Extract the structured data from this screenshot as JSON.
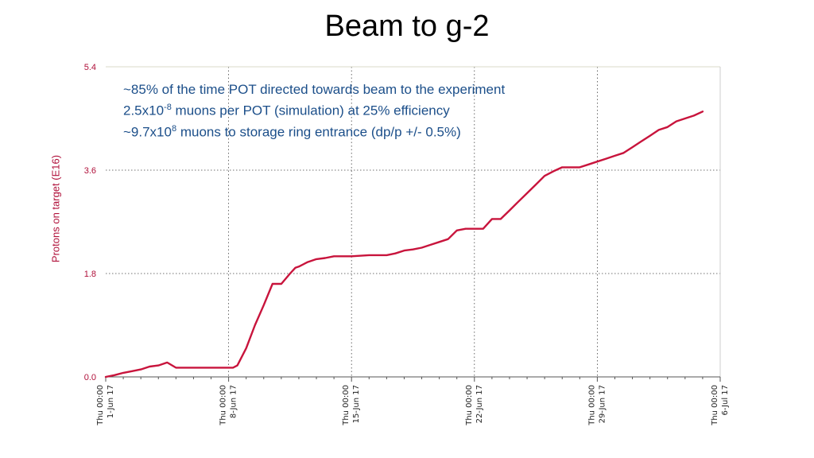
{
  "slide": {
    "title": "Beam to g-2"
  },
  "annotation": {
    "line1": "~85% of the time POT directed towards beam to the experiment",
    "line2_pre": "2.5x10",
    "line2_sup": "-8",
    "line2_post": " muons per POT (simulation) at 25% efficiency",
    "line3_pre": "~9.7x10",
    "line3_sup": "8",
    "line3_post": " muons to storage ring entrance (dp/p +/- 0.5%)"
  },
  "chart_data": {
    "type": "line",
    "ylabel": "Protons on target (E16)",
    "ylim": [
      0,
      5.4
    ],
    "yticks": [
      "0.0",
      "1.8",
      "3.6",
      "5.4"
    ],
    "xlim": [
      0,
      35
    ],
    "xticks": [
      {
        "x": 0,
        "line1": "Thu 00:00",
        "line2": "1-Jun 17"
      },
      {
        "x": 7,
        "line1": "Thu 00:00",
        "line2": "8-Jun 17"
      },
      {
        "x": 14,
        "line1": "Thu 00:00",
        "line2": "15-Jun 17"
      },
      {
        "x": 21,
        "line1": "Thu 00:00",
        "line2": "22-Jun 17"
      },
      {
        "x": 28,
        "line1": "Thu 00:00",
        "line2": "29-Jun 17"
      },
      {
        "x": 35,
        "line1": "Thu 00:00",
        "line2": "6-Jul 17"
      }
    ],
    "grid": true,
    "line_color": "#c8143c",
    "series": [
      {
        "x": [
          0.0,
          0.5,
          1.0,
          1.5,
          2.0,
          2.5,
          3.0,
          3.5,
          4.0,
          4.5,
          5.0,
          6.0,
          7.0,
          7.25,
          7.5,
          8.0,
          8.5,
          9.0,
          9.5,
          10.0,
          10.5,
          10.8,
          11.0,
          11.5,
          12.0,
          12.5,
          13.0,
          14.0,
          15.0,
          16.0,
          16.5,
          17.0,
          17.5,
          18.0,
          18.5,
          19.0,
          19.5,
          20.0,
          20.5,
          21.0,
          21.5,
          22.0,
          22.5,
          23.0,
          23.5,
          24.0,
          24.5,
          25.0,
          25.5,
          26.0,
          26.5,
          27.0,
          27.5,
          28.0,
          28.5,
          29.0,
          29.5,
          30.0,
          30.5,
          31.0,
          31.5,
          32.0,
          32.5,
          33.0,
          33.5,
          34.0
        ],
        "y": [
          0.0,
          0.03,
          0.07,
          0.1,
          0.13,
          0.18,
          0.2,
          0.25,
          0.16,
          0.16,
          0.16,
          0.16,
          0.16,
          0.16,
          0.2,
          0.5,
          0.9,
          1.25,
          1.62,
          1.62,
          1.8,
          1.9,
          1.92,
          2.0,
          2.05,
          2.07,
          2.1,
          2.1,
          2.12,
          2.12,
          2.15,
          2.2,
          2.22,
          2.25,
          2.3,
          2.35,
          2.4,
          2.55,
          2.58,
          2.58,
          2.58,
          2.75,
          2.75,
          2.9,
          3.05,
          3.2,
          3.35,
          3.5,
          3.58,
          3.65,
          3.65,
          3.65,
          3.7,
          3.75,
          3.8,
          3.85,
          3.9,
          4.0,
          4.1,
          4.2,
          4.3,
          4.35,
          4.45,
          4.5,
          4.55,
          4.62
        ]
      }
    ]
  }
}
